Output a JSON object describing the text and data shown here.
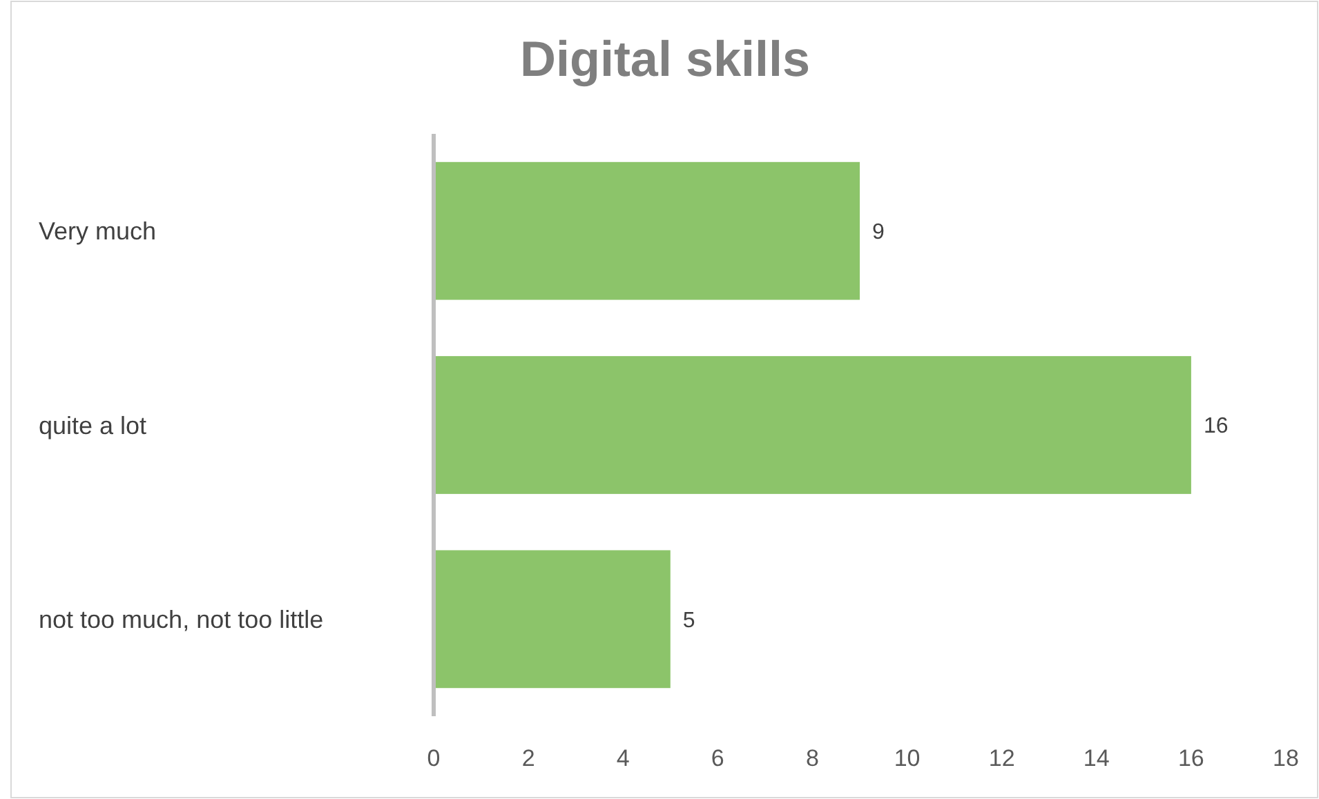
{
  "chart_data": {
    "type": "bar",
    "orientation": "horizontal",
    "title": "Digital skills",
    "categories": [
      "Very much",
      "quite a lot",
      "not too much, not too little"
    ],
    "values": [
      9,
      16,
      5
    ],
    "color": "#8cc46a",
    "xlim": [
      0,
      18
    ],
    "xticks": [
      0,
      2,
      4,
      6,
      8,
      10,
      12,
      14,
      16,
      18
    ],
    "grid": false,
    "data_labels": true
  }
}
